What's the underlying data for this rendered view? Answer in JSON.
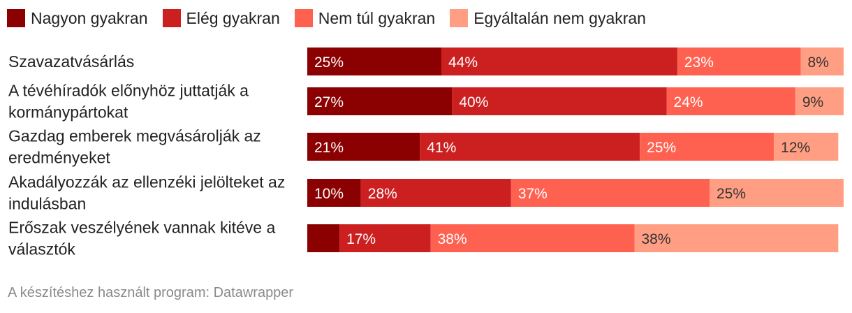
{
  "legend": [
    {
      "label": "Nagyon gyakran",
      "color": "#8b0000"
    },
    {
      "label": "Elég gyakran",
      "color": "#cc2020"
    },
    {
      "label": "Nem túl gyakran",
      "color": "#ff6150"
    },
    {
      "label": "Egyáltalán nem gyakran",
      "color": "#ff9e82"
    }
  ],
  "chart_data": {
    "type": "bar",
    "orientation": "horizontal",
    "stacked": true,
    "categories": [
      "Szavazatvásárlás",
      "A tévéhíradók előnyhöz juttatják a kormánypártokat",
      "Gazdag emberek megvásárolják az eredményeket",
      "Akadályozzák az ellenzéki jelölteket az indulásban",
      "Erőszak veszélyének vannak kitéve a választók"
    ],
    "series": [
      {
        "name": "Nagyon gyakran",
        "color": "#8b0000",
        "values": [
          25,
          27,
          21,
          10,
          6
        ]
      },
      {
        "name": "Elég gyakran",
        "color": "#cc2020",
        "values": [
          44,
          40,
          41,
          28,
          17
        ]
      },
      {
        "name": "Nem túl gyakran",
        "color": "#ff6150",
        "values": [
          23,
          24,
          25,
          37,
          38
        ]
      },
      {
        "name": "Egyáltalán nem gyakran",
        "color": "#ff9e82",
        "values": [
          8,
          9,
          12,
          25,
          38
        ]
      }
    ],
    "data_labels": [
      [
        "25%",
        "44%",
        "23%",
        "8%"
      ],
      [
        "27%",
        "40%",
        "24%",
        "9%"
      ],
      [
        "21%",
        "41%",
        "25%",
        "12%"
      ],
      [
        "10%",
        "28%",
        "37%",
        "25%"
      ],
      [
        "",
        "17%",
        "38%",
        "38%"
      ]
    ],
    "xlim": [
      0,
      100
    ],
    "legend_position": "top-left"
  },
  "footer": "A készítéshez használt program: Datawrapper"
}
